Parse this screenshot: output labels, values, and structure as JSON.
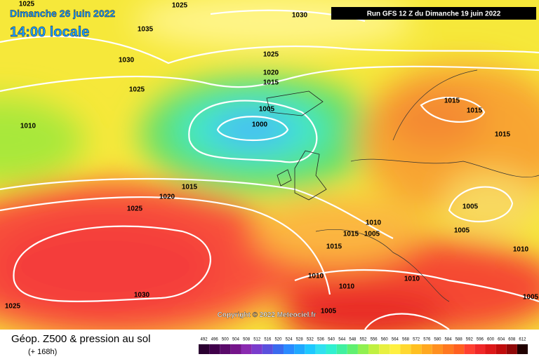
{
  "header": {
    "date": "Dimanche 26 juin 2022",
    "time": "14:00 locale",
    "run": "Run GFS 12 Z du Dimanche 19 juin 2022"
  },
  "copyright": "Copyright © 2022 Meteociel.fr",
  "footer": {
    "title": "Géop. Z500 & pression au sol",
    "lead": "(+ 168h)"
  },
  "isobar_labels": [
    "1025",
    "1025",
    "1030",
    "1035",
    "1030",
    "1025",
    "1020",
    "1015",
    "1025",
    "1005",
    "1000",
    "1010",
    "1015",
    "1015",
    "1015",
    "1015",
    "1020",
    "1025",
    "1005",
    "1010",
    "1005",
    "1015",
    "1005",
    "1015",
    "1010",
    "1010",
    "1010",
    "1010",
    "1030",
    "1025",
    "1005",
    "1005"
  ],
  "scale": {
    "values": [
      492,
      496,
      500,
      504,
      508,
      512,
      516,
      520,
      524,
      528,
      532,
      536,
      540,
      544,
      548,
      552,
      556,
      560,
      564,
      568,
      572,
      576,
      580,
      584,
      588,
      592,
      596,
      600,
      604,
      608,
      612
    ],
    "colors": [
      "#2a0030",
      "#40004a",
      "#5a0a6a",
      "#75158a",
      "#8a2ab0",
      "#7a3ccc",
      "#5a50dd",
      "#3a6aee",
      "#2a8aff",
      "#20a8ff",
      "#1ec8ff",
      "#30e0f0",
      "#30f0d0",
      "#40f0a0",
      "#60f070",
      "#90f050",
      "#c0f040",
      "#e8f040",
      "#fff040",
      "#ffd830",
      "#ffc020",
      "#ffa820",
      "#ff9020",
      "#ff7820",
      "#ff6020",
      "#ff4030",
      "#f02828",
      "#dd1818",
      "#c00c0c",
      "#900808",
      "#200000"
    ]
  }
}
